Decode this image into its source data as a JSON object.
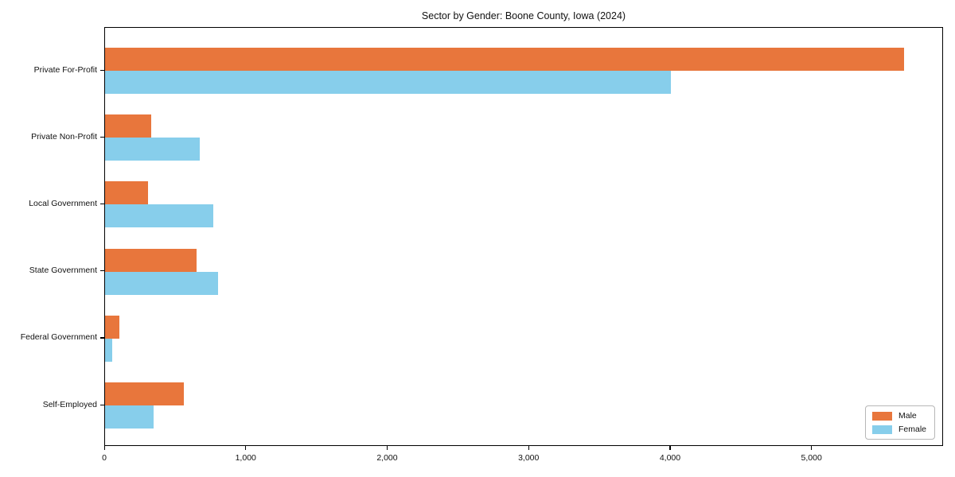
{
  "title": "Sector by Gender: Boone County, Iowa (2024)",
  "colors": {
    "male": "#e8763c",
    "female": "#87ceeb",
    "spine": "#000000",
    "text": "#111111"
  },
  "legend": {
    "items": [
      {
        "label": "Male",
        "series": "Male"
      },
      {
        "label": "Female",
        "series": "Female"
      }
    ],
    "position": "lower right"
  },
  "chart_data": {
    "type": "bar",
    "orientation": "horizontal",
    "title": "Sector by Gender: Boone County, Iowa (2024)",
    "xlabel": "",
    "ylabel": "",
    "categories": [
      "Private For-Profit",
      "Private Non-Profit",
      "Local Government",
      "State Government",
      "Federal Government",
      "Self-Employed"
    ],
    "series": [
      {
        "name": "Male",
        "color": "#e8763c",
        "values": [
          5650,
          325,
          305,
          645,
          100,
          555
        ]
      },
      {
        "name": "Female",
        "color": "#87ceeb",
        "values": [
          4000,
          670,
          765,
          800,
          50,
          345
        ]
      }
    ],
    "xlim": [
      0,
      5930
    ],
    "xticks": [
      0,
      1000,
      2000,
      3000,
      4000,
      5000
    ],
    "xtick_labels": [
      "0",
      "1,000",
      "2,000",
      "3,000",
      "4,000",
      "5,000"
    ],
    "grid": false,
    "legend_position": "lower right"
  }
}
